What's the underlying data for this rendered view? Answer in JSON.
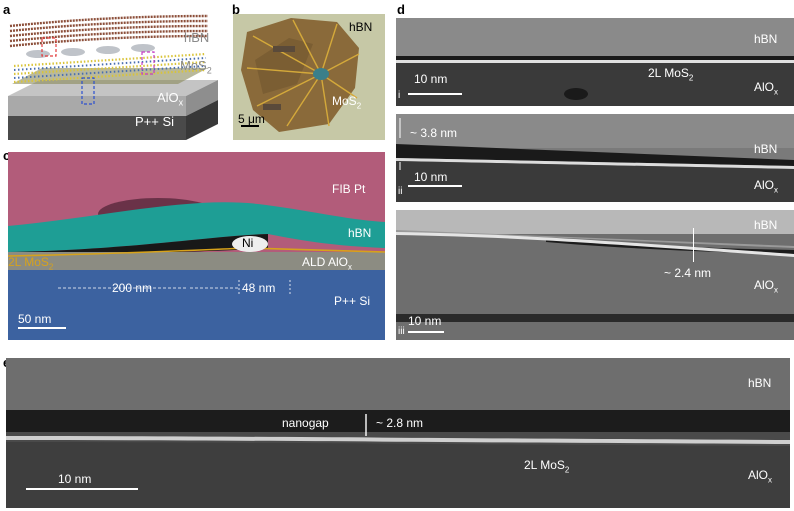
{
  "figure": {
    "panels": {
      "a": {
        "letter": "a",
        "labels": {
          "hbn": "hBN",
          "mos2_main": "MoS",
          "mos2_sub": "2",
          "aloxa_main": "AlO",
          "aloxa_sub": "x",
          "substrate": "P++ Si"
        }
      },
      "b": {
        "letter": "b",
        "labels": {
          "hbn": "hBN",
          "mos2_main": "MoS",
          "mos2_sub": "2",
          "scale": "5 μm"
        }
      },
      "c": {
        "letter": "c",
        "labels": {
          "fib_pt": "FIB Pt",
          "hbn": "hBN",
          "ni": "Ni",
          "mos2_main": "2L MoS",
          "mos2_sub": "2",
          "ald_main": "ALD AlO",
          "ald_sub": "x",
          "dim1": "200 nm",
          "dim2": "48 nm",
          "si": "P++ Si",
          "scale": "50 nm"
        }
      },
      "d": {
        "letter": "d",
        "sub_i": {
          "roman": "i",
          "hbn": "hBN",
          "mos2_main": "2L MoS",
          "mos2_sub": "2",
          "alox_main": "AlO",
          "alox_sub": "x",
          "scale": "10 nm"
        },
        "sub_ii": {
          "roman": "ii",
          "gap": "~ 3.8 nm",
          "hbn": "hBN",
          "alox_main": "AlO",
          "alox_sub": "x",
          "scale": "10 nm"
        },
        "sub_iii": {
          "roman": "iii",
          "hbn": "hBN",
          "gap": "~ 2.4 nm",
          "alox_main": "AlO",
          "alox_sub": "x",
          "scale": "10 nm"
        }
      },
      "e": {
        "letter": "e",
        "labels": {
          "hbn": "hBN",
          "nanogap": "nanogap",
          "gap": "~ 2.8 nm",
          "mos2_main": "2L MoS",
          "mos2_sub": "2",
          "alox_main": "AlO",
          "alox_sub": "x",
          "scale": "10 nm"
        }
      }
    },
    "colors": {
      "fib_pt": "#b25c7a",
      "hbn_c": "#1e9e95",
      "si": "#3c62a0",
      "ald": "#8c8c82",
      "mos2_line": "#d7a21b",
      "substrate_dark": "#454545",
      "optical_bg": "#c6c8a6",
      "flake": "#8a6a3a"
    }
  }
}
